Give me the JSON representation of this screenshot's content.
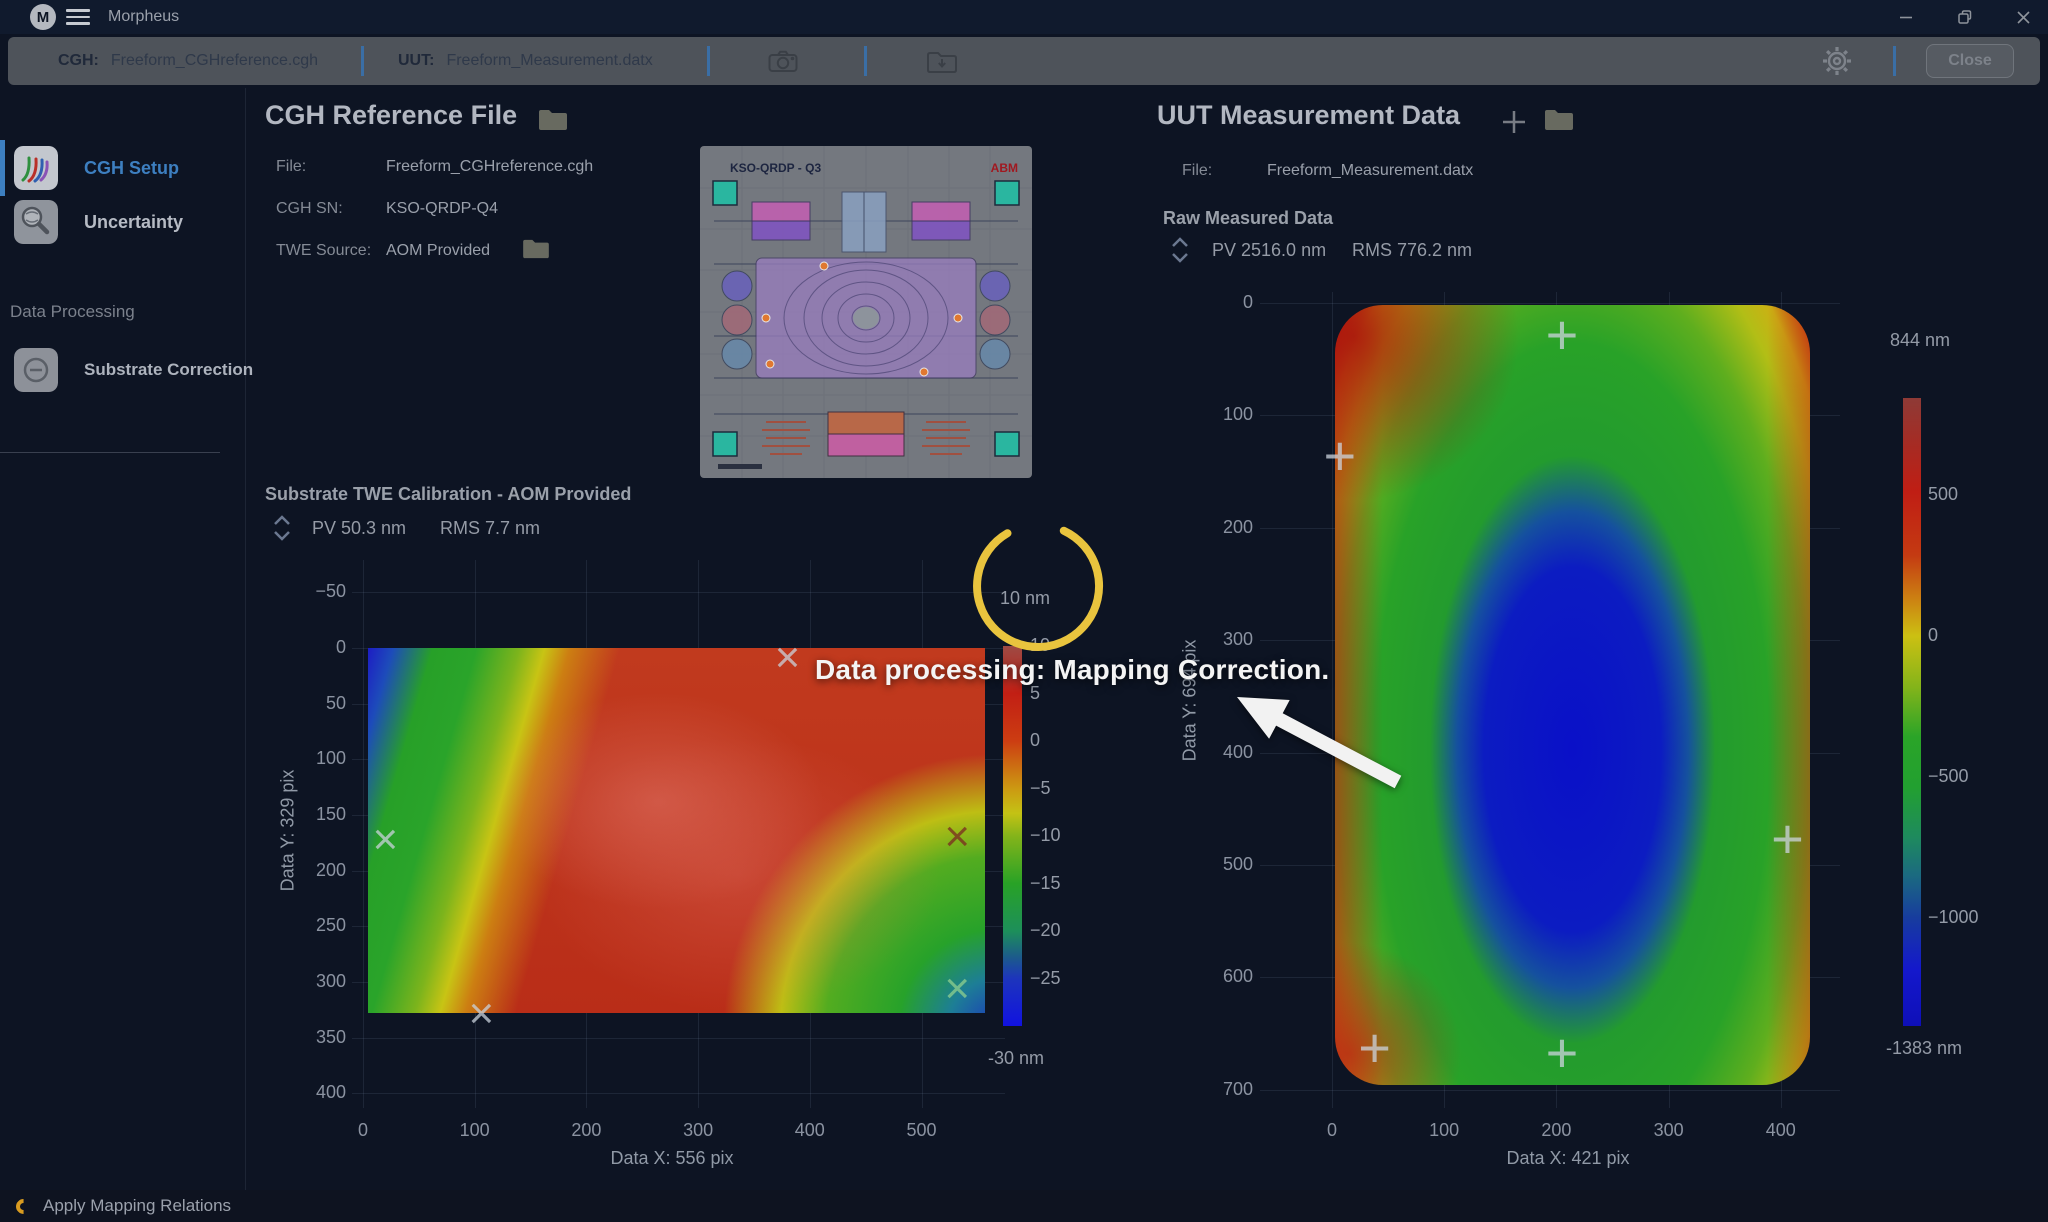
{
  "window": {
    "app_title": "Morpheus"
  },
  "toolbar": {
    "cgh_label": "CGH:",
    "cgh_file": "Freeform_CGHreference.cgh",
    "uut_label": "UUT:",
    "uut_file": "Freeform_Measurement.datx",
    "close_button": "Close"
  },
  "sidebar": {
    "nav": [
      {
        "label": "CGH Setup"
      },
      {
        "label": "Uncertainty"
      }
    ],
    "section": "Data Processing",
    "section_items": [
      {
        "label": "Substrate Correction"
      }
    ]
  },
  "cgh_panel": {
    "title": "CGH Reference File",
    "file_label": "File:",
    "file_value": "Freeform_CGHreference.cgh",
    "sn_label": "CGH SN:",
    "sn_value": "KSO-QRDP-Q4",
    "twe_label": "TWE Source:",
    "twe_value": "AOM Provided",
    "thumb_title": "KSO-QRDP - Q3",
    "thumb_logo": "ABM"
  },
  "substrate": {
    "title": "Substrate TWE Calibration - AOM Provided",
    "pv": "PV 50.3 nm",
    "rms": "RMS 7.7 nm"
  },
  "uut_panel": {
    "title": "UUT Measurement Data",
    "file_label": "File:",
    "file_value": "Freeform_Measurement.datx",
    "raw_title": "Raw Measured Data",
    "pv": "PV 2516.0 nm",
    "rms": "RMS 776.2 nm"
  },
  "overlay": {
    "message": "Data processing: Mapping Correction."
  },
  "status_bar": {
    "message": "Apply Mapping Relations"
  },
  "icons": {
    "logo_letter": "M",
    "x_marker_glyph": "×",
    "plus_marker_glyph": "+"
  },
  "colors": {
    "accent_blue": "#3d7fc0",
    "spinner_yellow": "#e9c43e",
    "status_orange": "#d89b20",
    "overlay_white": "#f4f4f4"
  },
  "chart_data": [
    {
      "type": "heatmap",
      "name": "substrate_twe_map",
      "title": "Substrate TWE Calibration - AOM Provided",
      "xlabel": "Data X: 556 pix",
      "ylabel": "Data Y: 329 pix",
      "x_ticks": [
        0,
        100,
        200,
        300,
        400,
        500
      ],
      "y_ticks": [
        -50,
        0,
        50,
        100,
        150,
        200,
        250,
        300,
        350,
        400
      ],
      "data_extent_pix": {
        "x": [
          0,
          556
        ],
        "y": [
          0,
          329
        ]
      },
      "colorbar": {
        "top_label": "10 nm",
        "bottom_label": "-30 nm",
        "ticks": [
          10,
          5,
          0,
          -5,
          -10,
          -15,
          -20,
          -25
        ],
        "range_nm": [
          -30,
          10
        ],
        "colormap": "jet"
      },
      "stats": {
        "pv_nm": 50.3,
        "rms_nm": 7.7
      },
      "markers": [
        {
          "x": 380,
          "y": 10,
          "color": "#c9d2db"
        },
        {
          "x": 20,
          "y": 173,
          "color": "#c9d2db"
        },
        {
          "x": 532,
          "y": 171,
          "color": "#7a2a20"
        },
        {
          "x": 106,
          "y": 330,
          "color": "#c9d2db"
        },
        {
          "x": 532,
          "y": 307,
          "color": "#8fcf8f"
        }
      ],
      "pattern": "blue/green band along left edge, dominant red body, green-to-blue corner at bottom right"
    },
    {
      "type": "heatmap",
      "name": "raw_measured_map",
      "title": "Raw Measured Data",
      "xlabel": "Data X: 421 pix",
      "ylabel": "Data Y: 694 pix",
      "x_ticks": [
        0,
        100,
        200,
        300,
        400
      ],
      "y_ticks": [
        0,
        100,
        200,
        300,
        400,
        500,
        600,
        700
      ],
      "data_extent_pix": {
        "x": [
          0,
          421
        ],
        "y": [
          0,
          694
        ]
      },
      "colorbar": {
        "top_label": "844 nm",
        "bottom_label": "-1383 nm",
        "ticks": [
          500,
          0,
          -500,
          -1000
        ],
        "range_nm": [
          -1383,
          844
        ],
        "colormap": "jet"
      },
      "stats": {
        "pv_nm": 2516.0,
        "rms_nm": 776.2
      },
      "markers": [
        {
          "x": 205,
          "y": 29,
          "color": "#ccd4de"
        },
        {
          "x": 7,
          "y": 137,
          "color": "#ccd4de"
        },
        {
          "x": 406,
          "y": 478,
          "color": "#ccd4de"
        },
        {
          "x": 38,
          "y": 664,
          "color": "#ccd4de"
        },
        {
          "x": 205,
          "y": 668,
          "color": "#ccd4de"
        }
      ],
      "pattern": "rounded-rectangle aperture, red rim, green mid-field, deep blue bowl at center"
    }
  ]
}
